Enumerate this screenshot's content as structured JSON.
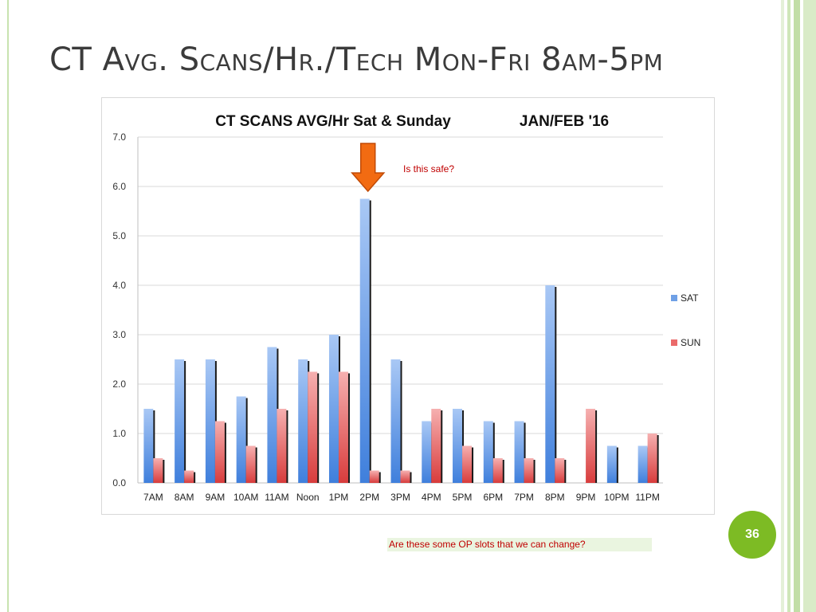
{
  "slide": {
    "title_parts": [
      {
        "text": "CT A",
        "sc": false
      },
      {
        "text": "vg. ",
        "sc": true
      },
      {
        "text": "S",
        "sc": false
      },
      {
        "text": "cans",
        "sc": true
      },
      {
        "text": "/H",
        "sc": false
      },
      {
        "text": "r.",
        "sc": true
      },
      {
        "text": "/T",
        "sc": false
      },
      {
        "text": "ech ",
        "sc": true
      },
      {
        "text": "M",
        "sc": false
      },
      {
        "text": "on",
        "sc": true
      },
      {
        "text": "-F",
        "sc": false
      },
      {
        "text": "ri ",
        "sc": true
      },
      {
        "text": "8",
        "sc": false
      },
      {
        "text": "am",
        "sc": true
      },
      {
        "text": "-5",
        "sc": false
      },
      {
        "text": "pm",
        "sc": true
      }
    ],
    "page_number": "36",
    "bottom_note": "Are these some OP slots that we can change?"
  },
  "colors": {
    "sat": "#6fa0e6",
    "sun": "#ea6a6a",
    "arrow": "#f26b12",
    "annotation": "#c00000",
    "accent": "#7dbb24"
  },
  "chart_data": {
    "type": "bar",
    "title": "CT SCANS AVG/Hr Sat & Sunday",
    "subtitle": "JAN/FEB '16",
    "categories": [
      "7AM",
      "8AM",
      "9AM",
      "10AM",
      "11AM",
      "Noon",
      "1PM",
      "2PM",
      "3PM",
      "4PM",
      "5PM",
      "6PM",
      "7PM",
      "8PM",
      "9PM",
      "10PM",
      "11PM"
    ],
    "series": [
      {
        "name": "SAT",
        "values": [
          1.5,
          2.5,
          2.5,
          1.75,
          2.75,
          2.5,
          3.0,
          5.75,
          2.5,
          1.25,
          1.5,
          1.25,
          1.25,
          4.0,
          0,
          0.75,
          0.75
        ]
      },
      {
        "name": "SUN",
        "values": [
          0.5,
          0.25,
          1.25,
          0.75,
          1.5,
          2.25,
          2.25,
          0.25,
          0.25,
          1.5,
          0.75,
          0.5,
          0.5,
          0.5,
          1.5,
          0,
          1.0
        ]
      }
    ],
    "y_ticks": [
      "0.0",
      "1.0",
      "2.0",
      "3.0",
      "4.0",
      "5.0",
      "6.0",
      "7.0"
    ],
    "ylim": [
      0,
      7
    ],
    "grid": true,
    "legend": "right",
    "annotation": {
      "text": "Is this safe?",
      "category": "2PM"
    }
  }
}
